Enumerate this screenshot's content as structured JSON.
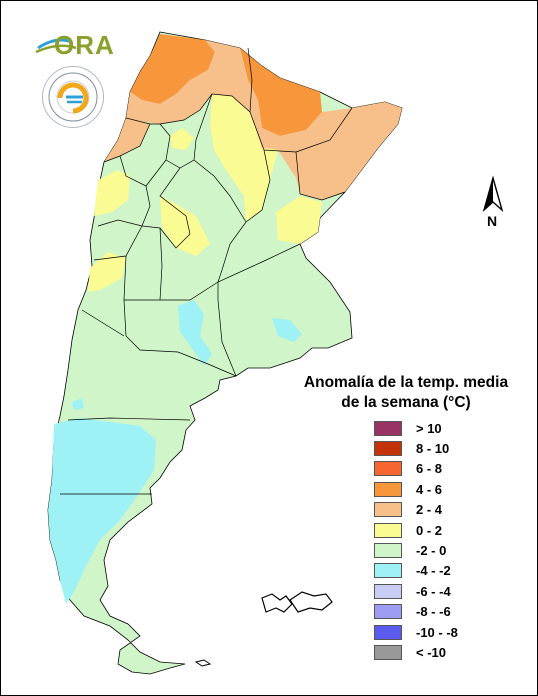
{
  "logo": {
    "text": "ORA"
  },
  "seal": {
    "text": "SERVICIO METEOROLOGICO NACIONAL · ARGENTINA"
  },
  "north": {
    "label": "N"
  },
  "legend": {
    "title_line1": "Anomalía de la temp. media",
    "title_line2": "de la semana (°C)",
    "items": [
      {
        "label": "> 10",
        "color": "#993366"
      },
      {
        "label": "8 - 10",
        "color": "#c4320a"
      },
      {
        "label": "6 - 8",
        "color": "#f76531"
      },
      {
        "label": "4 - 6",
        "color": "#f7963a"
      },
      {
        "label": "2 - 4",
        "color": "#f7c08a"
      },
      {
        "label": "0 - 2",
        "color": "#fbfb94"
      },
      {
        "label": "-2 - 0",
        "color": "#cff5c8"
      },
      {
        "label": "-4 - -2",
        "color": "#9ef1f4"
      },
      {
        "label": "-6 - -4",
        "color": "#c9ccf5"
      },
      {
        "label": "-8 - -6",
        "color": "#9d9df4"
      },
      {
        "label": "-10 - -8",
        "color": "#5b5bef"
      },
      {
        "label": "< -10",
        "color": "#999999"
      }
    ]
  }
}
